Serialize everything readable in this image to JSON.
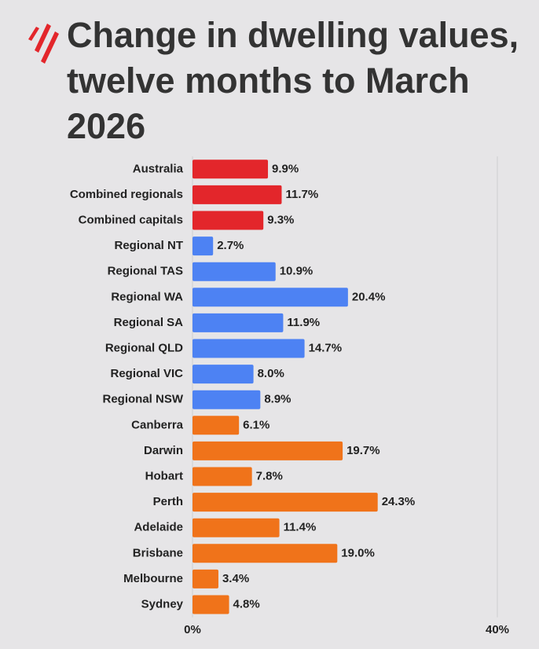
{
  "chart_data": {
    "type": "hbar",
    "title": "Change in dwelling values, twelve months to March 2026",
    "categories": [
      "Australia",
      "Combined regionals",
      "Combined capitals",
      "Regional NT",
      "Regional TAS",
      "Regional WA",
      "Regional SA",
      "Regional QLD",
      "Regional VIC",
      "Regional NSW",
      "Canberra",
      "Darwin",
      "Hobart",
      "Perth",
      "Adelaide",
      "Brisbane",
      "Melbourne",
      "Sydney"
    ],
    "values": [
      9.9,
      11.7,
      9.3,
      2.7,
      10.9,
      20.4,
      11.9,
      14.7,
      8.0,
      8.9,
      6.1,
      19.7,
      7.8,
      24.3,
      11.4,
      19.0,
      3.4,
      4.8
    ],
    "value_labels": [
      "9.9%",
      "11.7%",
      "9.3%",
      "2.7%",
      "10.9%",
      "20.4%",
      "11.9%",
      "14.7%",
      "8.0%",
      "8.9%",
      "6.1%",
      "19.7%",
      "7.8%",
      "24.3%",
      "11.4%",
      "19.0%",
      "3.4%",
      "4.8%"
    ],
    "colors": [
      "#e3262b",
      "#e3262b",
      "#e3262b",
      "#4d82f3",
      "#4d82f3",
      "#4d82f3",
      "#4d82f3",
      "#4d82f3",
      "#4d82f3",
      "#4d82f3",
      "#f0731a",
      "#f0731a",
      "#f0731a",
      "#f0731a",
      "#f0731a",
      "#f0731a",
      "#f0731a",
      "#f0731a"
    ],
    "xlim": [
      0,
      40
    ],
    "xticks": [
      {
        "value": 0,
        "label": "0%"
      },
      {
        "value": 40,
        "label": "40%"
      }
    ],
    "grid": true
  }
}
